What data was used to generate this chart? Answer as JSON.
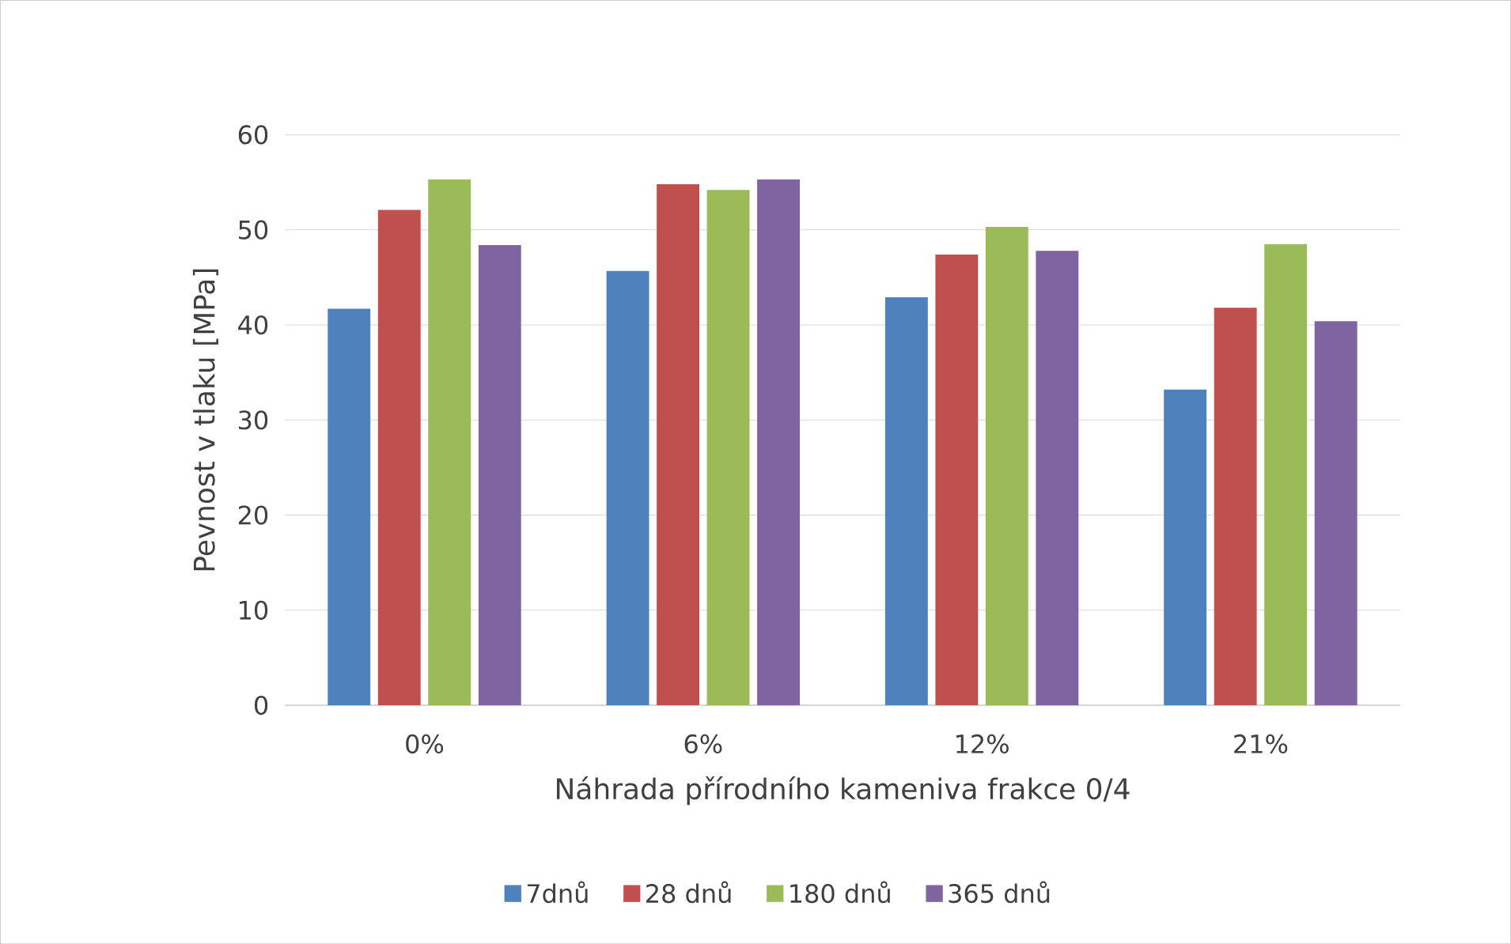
{
  "chart_data": {
    "type": "bar",
    "xlabel": "Náhrada přírodního kameniva frakce 0/4",
    "ylabel": "Pevnost v tlaku [MPa]",
    "categories": [
      "0%",
      "6%",
      "12%",
      "21%"
    ],
    "series": [
      {
        "name": "7dnů",
        "color": "#4f81bd",
        "values": [
          41.7,
          45.7,
          42.9,
          33.2
        ]
      },
      {
        "name": "28 dnů",
        "color": "#c0504d",
        "values": [
          52.1,
          54.8,
          47.4,
          41.8
        ]
      },
      {
        "name": "180 dnů",
        "color": "#9bbb59",
        "values": [
          55.3,
          54.2,
          50.3,
          48.5
        ]
      },
      {
        "name": "365 dnů",
        "color": "#8064a2",
        "values": [
          48.4,
          55.3,
          47.8,
          40.4
        ]
      }
    ],
    "ylim": [
      0,
      60
    ],
    "yticks": [
      0,
      10,
      20,
      30,
      40,
      50,
      60
    ],
    "grid": "y",
    "legend": "bottom"
  }
}
